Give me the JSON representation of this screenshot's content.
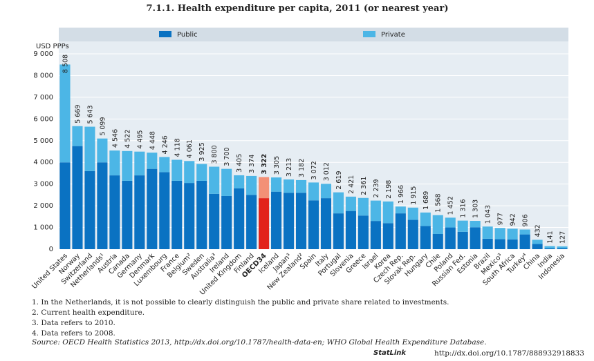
{
  "chart_data": {
    "type": "stacked-bar",
    "title": "7.1.1. Health expenditure per capita, 2011 (or nearest year)",
    "y_label": "USD PPPs",
    "categories": [
      "United States",
      "Norway",
      "Switzerland",
      "Netherlands¹",
      "Austria",
      "Canada",
      "Germany",
      "Denmark",
      "Luxembourg",
      "France",
      "Belgium²",
      "Sweden",
      "Australia³",
      "Ireland",
      "United Kingdom",
      "Finland",
      "OECD34",
      "Iceland",
      "Japan³",
      "New Zealand²",
      "Spain",
      "Italy",
      "Portugal",
      "Slovenia",
      "Greece",
      "Israel",
      "Korea",
      "Czech Rep.",
      "Slovak Rep.",
      "Hungary",
      "Chile",
      "Poland",
      "Russian Fed.",
      "Estonia",
      "Brazil",
      "Mexico³",
      "South Africa",
      "Turkey⁴",
      "China",
      "India",
      "Indonesia"
    ],
    "series": [
      {
        "name": "Public",
        "color": "#0a72c2",
        "highlight_color": "#e2231a",
        "values": [
          4000,
          4750,
          3600,
          4000,
          3400,
          3150,
          3400,
          3700,
          3550,
          3150,
          3050,
          3150,
          2550,
          2450,
          2800,
          2500,
          2350,
          2650,
          2600,
          2600,
          2250,
          2350,
          1650,
          1760,
          1550,
          1300,
          1200,
          1650,
          1350,
          1070,
          700,
          1000,
          800,
          1010,
          480,
          460,
          450,
          680,
          240,
          45,
          50
        ]
      },
      {
        "name": "Private",
        "color": "#4cb6e6",
        "highlight_color": "#f39076",
        "values": [
          4508,
          919,
          2043,
          1099,
          1146,
          1372,
          1095,
          748,
          696,
          968,
          1011,
          775,
          1250,
          1250,
          605,
          874,
          972,
          655,
          613,
          582,
          822,
          662,
          969,
          661,
          811,
          939,
          998,
          316,
          565,
          619,
          868,
          452,
          516,
          293,
          563,
          517,
          492,
          226,
          192,
          96,
          77
        ]
      }
    ],
    "highlight_index": 16,
    "totals": [
      8508,
      5669,
      5643,
      5099,
      4546,
      4522,
      4495,
      4448,
      4246,
      4118,
      4061,
      3925,
      3800,
      3700,
      3405,
      3374,
      3322,
      3305,
      3213,
      3182,
      3072,
      3012,
      2619,
      2421,
      2361,
      2239,
      2198,
      1966,
      1915,
      1689,
      1568,
      1452,
      1316,
      1303,
      1043,
      977,
      942,
      906,
      432,
      141,
      127
    ],
    "total_labels": [
      "8 508",
      "5 669",
      "5 643",
      "5 099",
      "4 546",
      "4 522",
      "4 495",
      "4 448",
      "4 246",
      "4 118",
      "4 061",
      "3 925",
      "3 800",
      "3 700",
      "3 405",
      "3 374",
      "3 322",
      "3 305",
      "3 213",
      "3 182",
      "3 072",
      "3 012",
      "2 619",
      "2 421",
      "2 361",
      "2 239",
      "2 198",
      "1 966",
      "1 915",
      "1 689",
      "1 568",
      "1 452",
      "1 316",
      "1 303",
      "1 043",
      "977",
      "942",
      "906",
      "432",
      "141",
      "127"
    ],
    "ylim": [
      0,
      9000
    ],
    "yticks": [
      0,
      {
        "value": 1000,
        "label": "1 000"
      },
      {
        "value": 2000,
        "label": "2 000"
      },
      {
        "value": 3000,
        "label": "3 000"
      },
      {
        "value": 4000,
        "label": "4 000"
      },
      {
        "value": 5000,
        "label": "5 000"
      },
      {
        "value": 6000,
        "label": "6 000"
      },
      {
        "value": 7000,
        "label": "7 000"
      },
      {
        "value": 8000,
        "label": "8 000"
      },
      {
        "value": 9000,
        "label": "9 000"
      }
    ],
    "grid": true
  },
  "notes": [
    "1. In the Netherlands, it is not possible to clearly distinguish the public and private share related to investments.",
    "2. Current health expenditure.",
    "3. Data refers to 2010.",
    "4. Data refers to 2008."
  ],
  "source": "Source: OECD Health Statistics 2013, http://dx.doi.org/10.1787/health-data-en; WHO Global Health Expenditure Database.",
  "statlink": "StatLink",
  "statlink_url": "http://dx.doi.org/10.1787/888932918833"
}
